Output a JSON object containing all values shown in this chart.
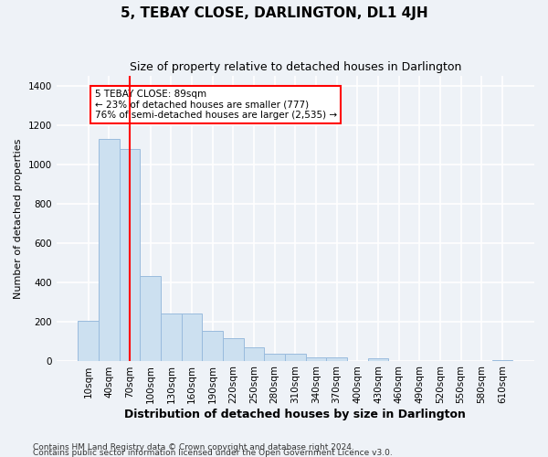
{
  "title": "5, TEBAY CLOSE, DARLINGTON, DL1 4JH",
  "subtitle": "Size of property relative to detached houses in Darlington",
  "xlabel": "Distribution of detached houses by size in Darlington",
  "ylabel": "Number of detached properties",
  "bar_labels": [
    "10sqm",
    "40sqm",
    "70sqm",
    "100sqm",
    "130sqm",
    "160sqm",
    "190sqm",
    "220sqm",
    "250sqm",
    "280sqm",
    "310sqm",
    "340sqm",
    "370sqm",
    "400sqm",
    "430sqm",
    "460sqm",
    "490sqm",
    "520sqm",
    "550sqm",
    "580sqm",
    "610sqm"
  ],
  "bar_values": [
    205,
    1130,
    1080,
    430,
    240,
    240,
    150,
    115,
    70,
    35,
    35,
    15,
    15,
    0,
    10,
    0,
    0,
    0,
    0,
    0,
    5
  ],
  "bar_color": "#cce0f0",
  "bar_edgecolor": "#99bbdd",
  "vline_x": 2.5,
  "vline_color": "red",
  "annotation_text": "5 TEBAY CLOSE: 89sqm\n← 23% of detached houses are smaller (777)\n76% of semi-detached houses are larger (2,535) →",
  "annotation_box_color": "white",
  "annotation_box_edgecolor": "red",
  "ylim": [
    0,
    1450
  ],
  "yticks": [
    0,
    200,
    400,
    600,
    800,
    1000,
    1200,
    1400
  ],
  "footer_line1": "Contains HM Land Registry data © Crown copyright and database right 2024.",
  "footer_line2": "Contains public sector information licensed under the Open Government Licence v3.0.",
  "bg_color": "#eef2f7",
  "plot_bg_color": "#eef2f7",
  "grid_color": "white",
  "title_fontsize": 11,
  "subtitle_fontsize": 9,
  "ylabel_fontsize": 8,
  "xlabel_fontsize": 9,
  "tick_fontsize": 7.5,
  "annotation_fontsize": 7.5,
  "footer_fontsize": 6.5
}
